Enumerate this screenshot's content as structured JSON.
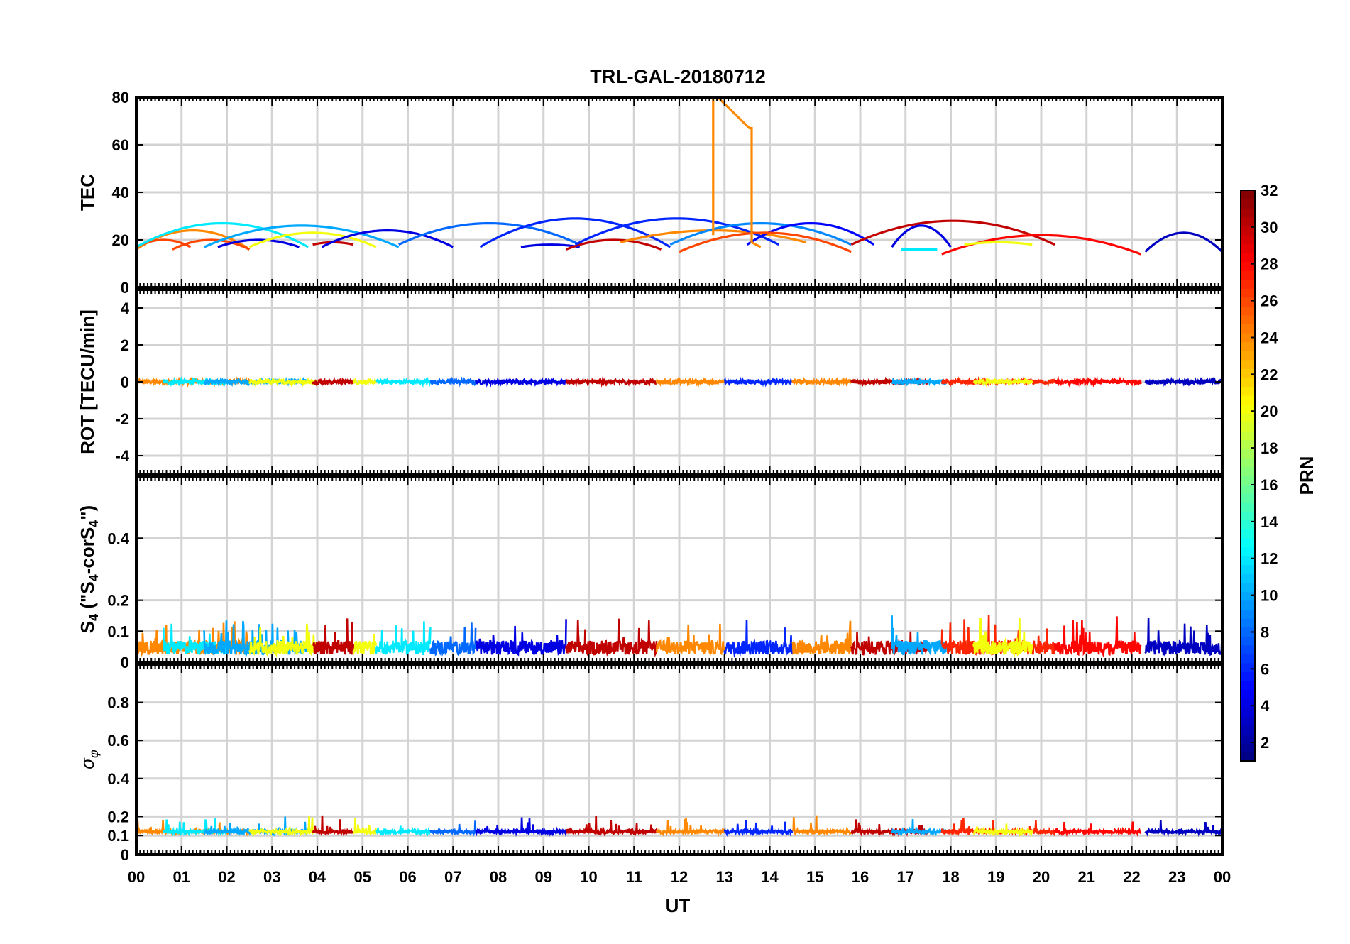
{
  "chart_data": {
    "title": "TRL-GAL-20180712",
    "xlabel": "UT",
    "xlim": [
      0,
      24
    ],
    "x_tick_labels": [
      "00",
      "01",
      "02",
      "03",
      "04",
      "05",
      "06",
      "07",
      "08",
      "09",
      "10",
      "11",
      "12",
      "13",
      "14",
      "15",
      "16",
      "17",
      "18",
      "19",
      "20",
      "21",
      "22",
      "23",
      "00"
    ],
    "colorbar": {
      "label": "PRN",
      "range": [
        1,
        32
      ],
      "tick_labels": [
        "2",
        "4",
        "6",
        "8",
        "10",
        "12",
        "14",
        "16",
        "18",
        "20",
        "22",
        "24",
        "26",
        "28",
        "30",
        "32"
      ],
      "colormap": "jet"
    },
    "panels": [
      {
        "id": "tec",
        "type": "line",
        "ylabel": "TEC",
        "ylim": [
          0,
          80
        ],
        "y_ticks": [
          0,
          20,
          40,
          60,
          80
        ],
        "y_tick_labels": [
          "0",
          "20",
          "40",
          "60",
          "80"
        ],
        "series": [
          {
            "prn": 24,
            "t0": 0.0,
            "t1": 2.5,
            "peak": 24,
            "edge": 16
          },
          {
            "prn": 26,
            "t0": 0.0,
            "t1": 1.2,
            "peak": 20,
            "edge": 17
          },
          {
            "prn": 12,
            "t0": 0.0,
            "t1": 3.8,
            "peak": 27,
            "edge": 17
          },
          {
            "prn": 26,
            "t0": 0.8,
            "t1": 2.5,
            "peak": 20,
            "edge": 16
          },
          {
            "prn": 10,
            "t0": 1.5,
            "t1": 5.8,
            "peak": 26,
            "edge": 17
          },
          {
            "prn": 4,
            "t0": 1.8,
            "t1": 3.6,
            "peak": 20,
            "edge": 17
          },
          {
            "prn": 20,
            "t0": 2.5,
            "t1": 5.3,
            "peak": 23,
            "edge": 17
          },
          {
            "prn": 30,
            "t0": 3.9,
            "t1": 4.8,
            "peak": 19,
            "edge": 18
          },
          {
            "prn": 4,
            "t0": 4.1,
            "t1": 7.0,
            "peak": 24,
            "edge": 17
          },
          {
            "prn": 8,
            "t0": 5.8,
            "t1": 9.8,
            "peak": 27,
            "edge": 18
          },
          {
            "prn": 6,
            "t0": 7.6,
            "t1": 11.8,
            "peak": 29,
            "edge": 17
          },
          {
            "prn": 4,
            "t0": 8.5,
            "t1": 9.8,
            "peak": 18,
            "edge": 17
          },
          {
            "prn": 30,
            "t0": 9.5,
            "t1": 11.6,
            "peak": 20,
            "edge": 16
          },
          {
            "prn": 24,
            "t0": 10.7,
            "t1": 14.8,
            "peak": 24,
            "edge": 19
          },
          {
            "prn": 6,
            "t0": 9.7,
            "t1": 14.2,
            "peak": 29,
            "edge": 18
          },
          {
            "prn": 9,
            "t0": 11.8,
            "t1": 15.8,
            "peak": 27,
            "edge": 18
          },
          {
            "prn": 5,
            "t0": 13.5,
            "t1": 16.3,
            "peak": 27,
            "edge": 18
          },
          {
            "prn": 26,
            "t0": 12.0,
            "t1": 15.8,
            "peak": 23,
            "edge": 15
          },
          {
            "prn": 30,
            "t0": 15.8,
            "t1": 20.3,
            "peak": 28,
            "edge": 18
          },
          {
            "prn": 4,
            "t0": 16.7,
            "t1": 18.0,
            "peak": 26,
            "edge": 17
          },
          {
            "prn": 12,
            "t0": 16.9,
            "t1": 17.7,
            "peak": 16,
            "edge": 16
          },
          {
            "prn": 28,
            "t0": 17.8,
            "t1": 22.2,
            "peak": 22,
            "edge": 14
          },
          {
            "prn": 20,
            "t0": 18.3,
            "t1": 19.8,
            "peak": 19,
            "edge": 18
          },
          {
            "prn": 3,
            "t0": 22.3,
            "t1": 24.0,
            "peak": 23,
            "edge": 15
          }
        ],
        "spike": {
          "prn": 24,
          "x": [
            12.75,
            12.75,
            12.85,
            13.55,
            13.6,
            13.6,
            13.8
          ],
          "y": [
            22,
            80,
            80,
            67,
            67,
            19,
            17
          ]
        }
      },
      {
        "id": "rot",
        "type": "line",
        "ylabel": "ROT [TECU/min]",
        "ylim": [
          -5,
          5
        ],
        "y_ticks": [
          -4,
          -2,
          0,
          2,
          4
        ],
        "y_tick_labels": [
          "-4",
          "-2",
          "0",
          "2",
          "4"
        ],
        "baseline": 0
      },
      {
        "id": "s4",
        "type": "line",
        "ylabel_parts": [
          "S",
          "4",
          " (\"S",
          "4",
          "-corS",
          "4",
          "\")"
        ],
        "ylim": [
          0,
          0.6
        ],
        "y_ticks": [
          0,
          0.1,
          0.2,
          0.4
        ],
        "y_tick_labels": [
          "0",
          "0.1",
          "0.2",
          "0.4"
        ],
        "baseline": 0.04,
        "max_excursion": 0.15
      },
      {
        "id": "sigma",
        "type": "line",
        "ylabel_parts": [
          "σ",
          "φ"
        ],
        "ylim": [
          0,
          1
        ],
        "y_ticks": [
          0,
          0.1,
          0.2,
          0.4,
          0.6,
          0.8
        ],
        "y_tick_labels": [
          "0",
          "0.1",
          "0.2",
          "0.4",
          "0.6",
          "0.8"
        ],
        "baseline": 0.12,
        "max_excursion": 0.2
      }
    ],
    "arcs": [
      {
        "prn": 24,
        "t0": 0.0,
        "t1": 2.5
      },
      {
        "prn": 12,
        "t0": 0.6,
        "t1": 2.0
      },
      {
        "prn": 10,
        "t0": 1.5,
        "t1": 3.8
      },
      {
        "prn": 20,
        "t0": 2.5,
        "t1": 4.0
      },
      {
        "prn": 30,
        "t0": 3.9,
        "t1": 4.8
      },
      {
        "prn": 20,
        "t0": 4.8,
        "t1": 5.3
      },
      {
        "prn": 12,
        "t0": 5.3,
        "t1": 6.5
      },
      {
        "prn": 8,
        "t0": 6.5,
        "t1": 7.5
      },
      {
        "prn": 4,
        "t0": 7.5,
        "t1": 9.5
      },
      {
        "prn": 30,
        "t0": 9.5,
        "t1": 11.5
      },
      {
        "prn": 24,
        "t0": 11.5,
        "t1": 13.0
      },
      {
        "prn": 6,
        "t0": 13.0,
        "t1": 14.5
      },
      {
        "prn": 24,
        "t0": 14.5,
        "t1": 15.8
      },
      {
        "prn": 30,
        "t0": 15.8,
        "t1": 17.5
      },
      {
        "prn": 10,
        "t0": 16.7,
        "t1": 17.9
      },
      {
        "prn": 27,
        "t0": 17.8,
        "t1": 20.3
      },
      {
        "prn": 20,
        "t0": 18.5,
        "t1": 19.8
      },
      {
        "prn": 28,
        "t0": 20.3,
        "t1": 22.2
      },
      {
        "prn": 3,
        "t0": 22.3,
        "t1": 24.0
      }
    ]
  }
}
